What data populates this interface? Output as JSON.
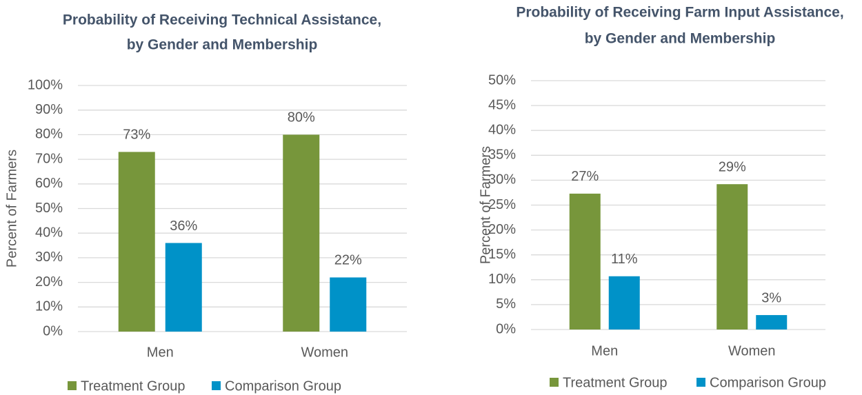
{
  "chart_data": [
    {
      "type": "bar",
      "title": [
        "Probability of Receiving Technical Assistance,",
        "by Gender and Membership"
      ],
      "y_label": "Percent of Farmers",
      "categories": [
        "Men",
        "Women"
      ],
      "series": [
        {
          "name": "Treatment Group",
          "color": "#77963b",
          "values": [
            73,
            80
          ],
          "value_labels": [
            "73%",
            "80%"
          ]
        },
        {
          "name": "Comparison Group",
          "color": "#0092c8",
          "values": [
            36,
            22
          ],
          "value_labels": [
            "36%",
            "22%"
          ]
        }
      ],
      "ylim": [
        0,
        100
      ],
      "yticks": [
        {
          "value": 0,
          "label": "0%"
        },
        {
          "value": 10,
          "label": "10%"
        },
        {
          "value": 20,
          "label": "20%"
        },
        {
          "value": 30,
          "label": "30%"
        },
        {
          "value": 40,
          "label": "40%"
        },
        {
          "value": 50,
          "label": "50%"
        },
        {
          "value": 60,
          "label": "60%"
        },
        {
          "value": 70,
          "label": "70%"
        },
        {
          "value": 80,
          "label": "80%"
        },
        {
          "value": 90,
          "label": "90%"
        },
        {
          "value": 100,
          "label": "100%"
        }
      ],
      "grid": true,
      "legend": "bottom"
    },
    {
      "type": "bar",
      "title": [
        "Probability of Receiving Farm Input Assistance,",
        "by Gender and Membership"
      ],
      "y_label": "Percent of Farmers",
      "categories": [
        "Men",
        "Women"
      ],
      "series": [
        {
          "name": "Treatment Group",
          "color": "#77963b",
          "values": [
            27.3,
            29.2
          ],
          "value_labels": [
            "27%",
            "29%"
          ]
        },
        {
          "name": "Comparison Group",
          "color": "#0092c8",
          "values": [
            10.7,
            2.9
          ],
          "value_labels": [
            "11%",
            "3%"
          ]
        }
      ],
      "ylim": [
        0,
        50
      ],
      "yticks": [
        {
          "value": 0,
          "label": "0%"
        },
        {
          "value": 5,
          "label": "5%"
        },
        {
          "value": 10,
          "label": "10%"
        },
        {
          "value": 15,
          "label": "15%"
        },
        {
          "value": 20,
          "label": "20%"
        },
        {
          "value": 25,
          "label": "25%"
        },
        {
          "value": 30,
          "label": "30%"
        },
        {
          "value": 35,
          "label": "35%"
        },
        {
          "value": 40,
          "label": "40%"
        },
        {
          "value": 45,
          "label": "45%"
        },
        {
          "value": 50,
          "label": "50%"
        }
      ],
      "grid": true,
      "legend": "bottom"
    }
  ]
}
